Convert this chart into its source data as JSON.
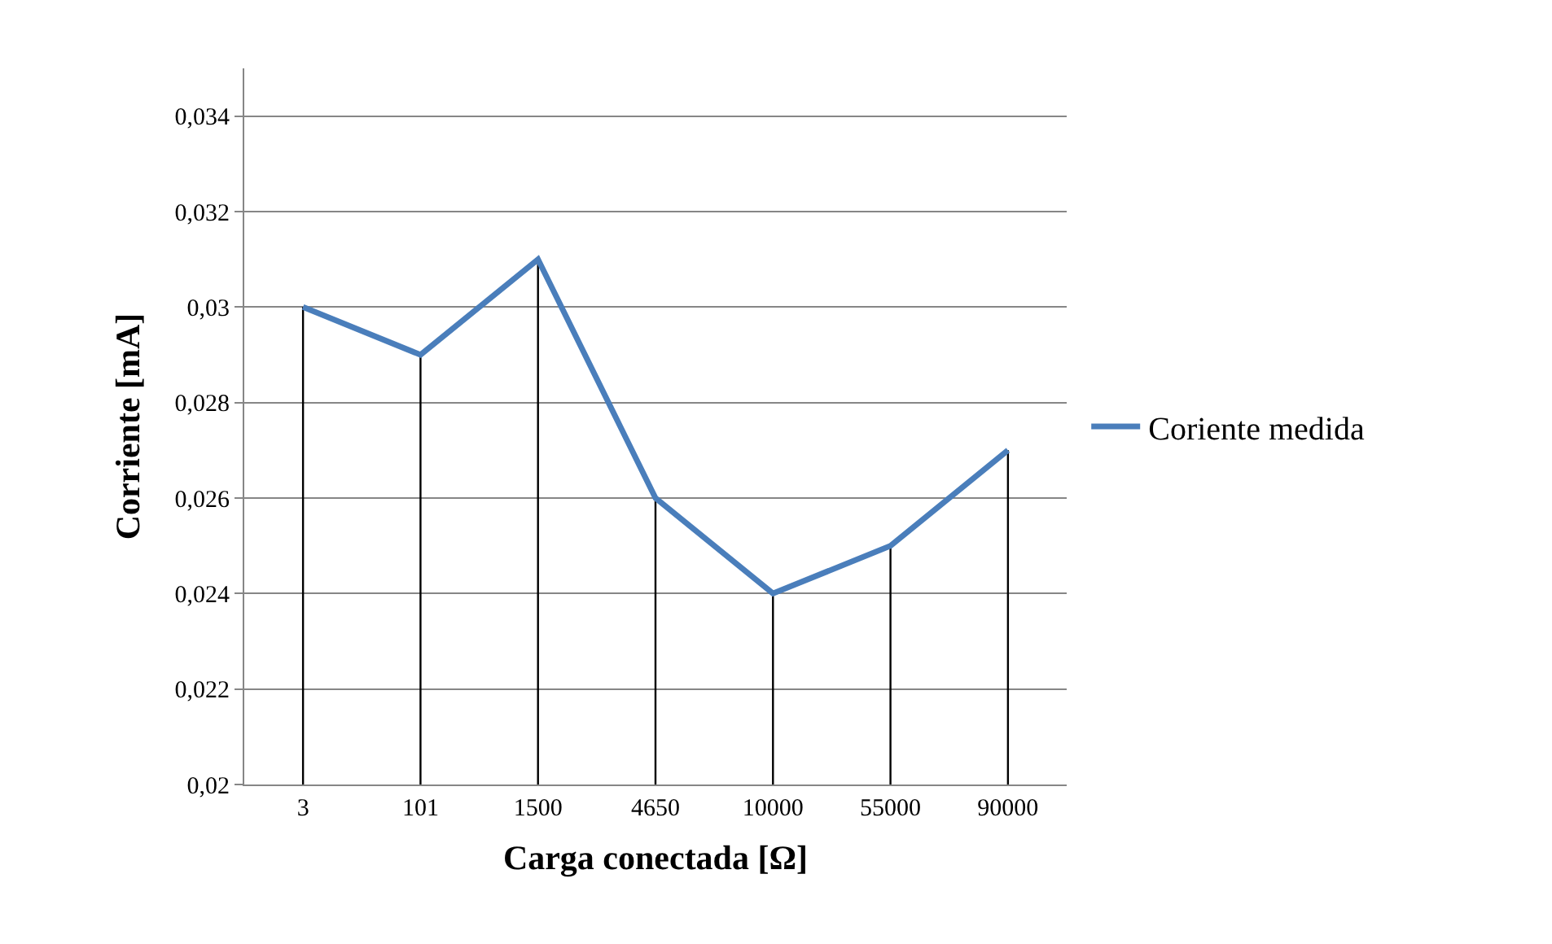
{
  "chart_data": {
    "type": "line",
    "xlabel": "Carga conectada [Ω]",
    "ylabel": "Corriente [mA]",
    "categories": [
      "3",
      "101",
      "1500",
      "4650",
      "10000",
      "55000",
      "90000"
    ],
    "series": [
      {
        "name": "Coriente medida",
        "color": "#4a7ebb",
        "values": [
          0.03,
          0.029,
          0.031,
          0.026,
          0.024,
          0.025,
          0.027
        ],
        "errors": [
          [
            0.02,
            0.03
          ],
          [
            0.02,
            0.029
          ],
          [
            0.02,
            0.031
          ],
          [
            0.02,
            0.026
          ],
          [
            0.02,
            0.024
          ],
          [
            0.02,
            0.025
          ],
          [
            0.02,
            0.027
          ]
        ]
      }
    ],
    "ylim": [
      0.02,
      0.035
    ],
    "yticks": [
      {
        "value": 0.02,
        "label": "0,02"
      },
      {
        "value": 0.022,
        "label": "0,022"
      },
      {
        "value": 0.024,
        "label": "0,024"
      },
      {
        "value": 0.026,
        "label": "0,026"
      },
      {
        "value": 0.028,
        "label": "0,028"
      },
      {
        "value": 0.03,
        "label": "0,03"
      },
      {
        "value": 0.032,
        "label": "0,032"
      },
      {
        "value": 0.034,
        "label": "0,034"
      }
    ],
    "grid": "y",
    "legend": "right",
    "marker": "none",
    "line_style": "solid"
  }
}
